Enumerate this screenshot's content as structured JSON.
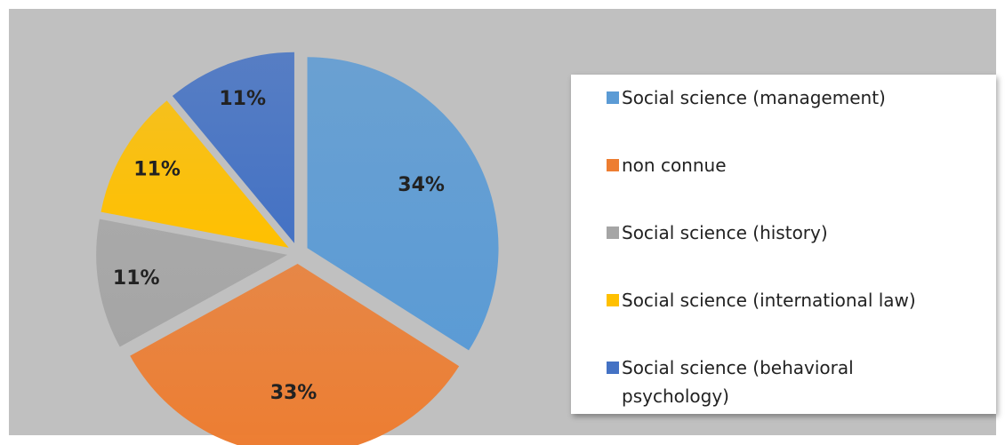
{
  "chart_data": {
    "type": "pie",
    "categories": [
      "Social science (management)",
      "non connue",
      "Social science (history)",
      "Social science (international law)",
      "Social science (behavioral psychology)"
    ],
    "values": [
      34,
      33,
      11,
      11,
      11
    ],
    "value_labels": [
      "34%",
      "33%",
      "11%",
      "11%",
      "11%"
    ],
    "colors": [
      "#5b9bd5",
      "#ed7d31",
      "#a5a5a5",
      "#ffc000",
      "#4472c4"
    ]
  }
}
